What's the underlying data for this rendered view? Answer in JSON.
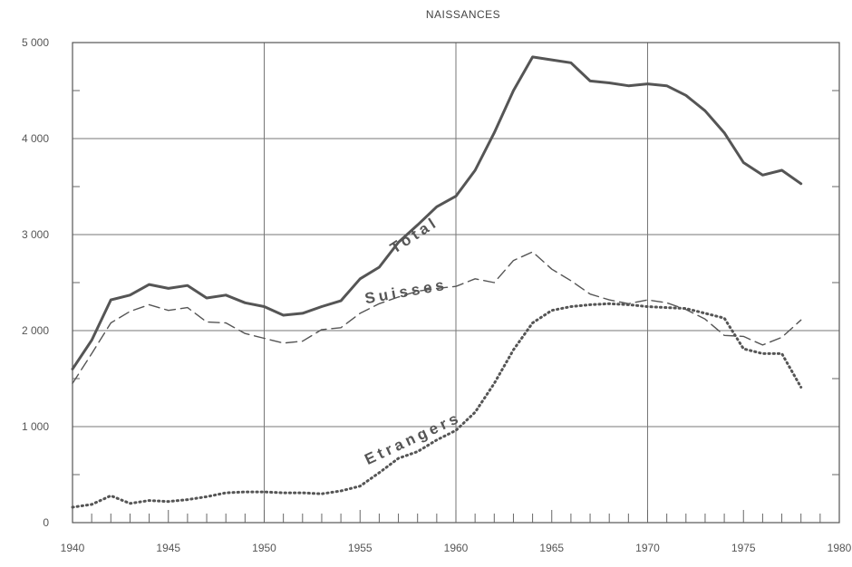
{
  "chart_data": {
    "type": "line",
    "title": "NAISSANCES",
    "xlabel": "",
    "ylabel": "",
    "xlim": [
      1940,
      1980
    ],
    "ylim": [
      0,
      5000
    ],
    "x_ticks": [
      1940,
      1945,
      1950,
      1955,
      1960,
      1965,
      1970,
      1975,
      1980
    ],
    "x_tick_labels": [
      "1940",
      "1945",
      "1950",
      "1955",
      "1960",
      "1965",
      "1970",
      "1975",
      "1980"
    ],
    "y_ticks": [
      0,
      1000,
      2000,
      3000,
      4000,
      5000
    ],
    "y_tick_labels": [
      "0",
      "1 000",
      "2 000",
      "3 000",
      "4 000",
      "5 000"
    ],
    "grid": true,
    "legend": "none",
    "series": [
      {
        "name": "Total",
        "style": "solid",
        "color": "#555555",
        "x": [
          1940,
          1941,
          1942,
          1943,
          1944,
          1945,
          1946,
          1947,
          1948,
          1949,
          1950,
          1951,
          1952,
          1953,
          1954,
          1955,
          1956,
          1957,
          1958,
          1959,
          1960,
          1961,
          1962,
          1963,
          1964,
          1965,
          1966,
          1967,
          1968,
          1969,
          1970,
          1971,
          1972,
          1973,
          1974,
          1975,
          1976,
          1977,
          1978
        ],
        "values": [
          1600,
          1900,
          2320,
          2370,
          2480,
          2440,
          2470,
          2340,
          2370,
          2290,
          2250,
          2160,
          2180,
          2250,
          2310,
          2540,
          2660,
          2920,
          3100,
          3290,
          3400,
          3670,
          4060,
          4500,
          4850,
          4820,
          4790,
          4600,
          4580,
          4550,
          4570,
          4550,
          4450,
          4290,
          4060,
          3750,
          3620,
          3670,
          3530
        ]
      },
      {
        "name": "Suisses",
        "style": "dashed",
        "color": "#555555",
        "x": [
          1940,
          1941,
          1942,
          1943,
          1944,
          1945,
          1946,
          1947,
          1948,
          1949,
          1950,
          1951,
          1952,
          1953,
          1954,
          1955,
          1956,
          1957,
          1958,
          1959,
          1960,
          1961,
          1962,
          1963,
          1964,
          1965,
          1966,
          1967,
          1968,
          1969,
          1970,
          1971,
          1972,
          1973,
          1974,
          1975,
          1976,
          1977,
          1978
        ],
        "values": [
          1450,
          1760,
          2080,
          2200,
          2270,
          2210,
          2240,
          2090,
          2080,
          1970,
          1920,
          1870,
          1890,
          2010,
          2030,
          2180,
          2280,
          2350,
          2410,
          2440,
          2460,
          2540,
          2500,
          2730,
          2820,
          2640,
          2520,
          2380,
          2320,
          2280,
          2320,
          2290,
          2220,
          2120,
          1950,
          1940,
          1850,
          1930,
          2110
        ]
      },
      {
        "name": "Etrangers",
        "style": "dotted",
        "color": "#555555",
        "x": [
          1940,
          1941,
          1942,
          1943,
          1944,
          1945,
          1946,
          1947,
          1948,
          1949,
          1950,
          1951,
          1952,
          1953,
          1954,
          1955,
          1956,
          1957,
          1958,
          1959,
          1960,
          1961,
          1962,
          1963,
          1964,
          1965,
          1966,
          1967,
          1968,
          1969,
          1970,
          1971,
          1972,
          1973,
          1974,
          1975,
          1976,
          1977,
          1978
        ],
        "values": [
          160,
          190,
          280,
          200,
          230,
          220,
          240,
          270,
          310,
          320,
          320,
          310,
          310,
          300,
          330,
          380,
          520,
          670,
          740,
          860,
          960,
          1150,
          1450,
          1800,
          2080,
          2210,
          2250,
          2270,
          2280,
          2270,
          2250,
          2240,
          2230,
          2180,
          2130,
          1810,
          1760,
          1760,
          1410
        ]
      }
    ]
  }
}
